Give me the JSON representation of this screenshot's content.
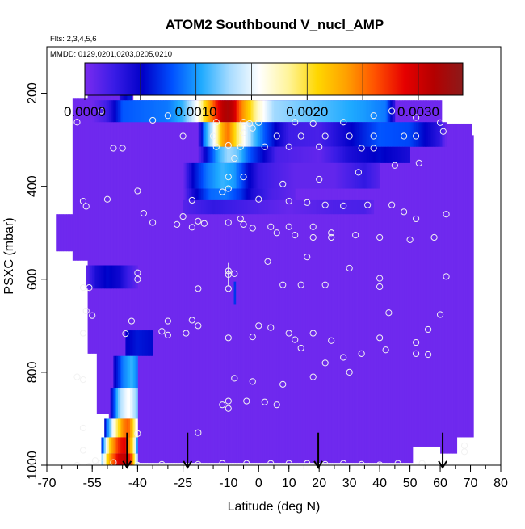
{
  "chart_data": {
    "type": "heatmap",
    "title": "ATOM2 Southbound V_nucl_AMP",
    "subtitle_flights": "Flts: 2,3,4,5,6",
    "subtitle_dates": "MMDD: 0129,0201,0203,0205,0210",
    "xlabel": "Latitude (deg N)",
    "ylabel": "PSXC (mbar)",
    "xlim": [
      -70,
      80
    ],
    "ylim": [
      1000,
      100
    ],
    "x_ticks": [
      -70,
      -55,
      -40,
      -25,
      -10,
      0,
      10,
      20,
      30,
      40,
      50,
      60,
      70,
      80
    ],
    "x_tick_labels": [
      "-70",
      "-55",
      "-40",
      "-25",
      "-10",
      "0",
      "10",
      "20",
      "30",
      "40",
      "50",
      "60",
      "70",
      "80"
    ],
    "y_ticks": [
      200,
      400,
      600,
      800,
      1000
    ],
    "y_tick_labels": [
      "200",
      "400",
      "600",
      "800",
      "1000"
    ],
    "colorbar": {
      "range": [
        0,
        0.0034
      ],
      "tick_values": [
        0,
        0.001,
        0.002,
        0.003
      ],
      "tick_labels": [
        "0.0000",
        "0.0010",
        "0.0020",
        "0.0030"
      ],
      "colors": [
        "#7b2cf0",
        "#3a1ce6",
        "#0000c8",
        "#0050ff",
        "#1eaaff",
        "#a8dcff",
        "#ffffff",
        "#fff49a",
        "#ffd700",
        "#ffa000",
        "#ff5000",
        "#e60000",
        "#b40000",
        "#8c1a1a"
      ]
    },
    "background_value": 5e-05,
    "envelope": [
      {
        "lat": -67,
        "p_top": 460,
        "p_bot": 540
      },
      {
        "lat": -62,
        "p_top": 210,
        "p_bot": 560
      },
      {
        "lat": -57,
        "p_top": 200,
        "p_bot": 760
      },
      {
        "lat": -54,
        "p_top": 165,
        "p_bot": 890
      },
      {
        "lat": -50,
        "p_top": 165,
        "p_bot": 985
      },
      {
        "lat": -46,
        "p_top": 165,
        "p_bot": 995
      },
      {
        "lat": -42,
        "p_top": 215,
        "p_bot": 995
      },
      {
        "lat": 45,
        "p_top": 215,
        "p_bot": 995
      },
      {
        "lat": 51,
        "p_top": 215,
        "p_bot": 975
      },
      {
        "lat": 60,
        "p_top": 265,
        "p_bot": 975
      },
      {
        "lat": 65,
        "p_top": 265,
        "p_bot": 940
      },
      {
        "lat": 70,
        "p_top": 290,
        "p_bot": 940
      }
    ],
    "envelope_gap": {
      "lat_min": 51,
      "lat_max": 60,
      "p_top": 960,
      "p_bot": 1000
    },
    "features": [
      {
        "name": "upper-band-1",
        "lat_min": -55,
        "lat_max": 45,
        "p_min": 215,
        "p_max": 262,
        "profile": [
          [
            -55,
            5e-05
          ],
          [
            -50,
            0.00025
          ],
          [
            -45,
            0.0008
          ],
          [
            -38,
            0.00085
          ],
          [
            -30,
            0.0009
          ],
          [
            -25,
            0.0011
          ],
          [
            -20,
            0.0016
          ],
          [
            -16,
            0.0024
          ],
          [
            -12,
            0.0031
          ],
          [
            -10,
            0.0032
          ],
          [
            -8,
            0.003
          ],
          [
            -6,
            0.0025
          ],
          [
            -3,
            0.0021
          ],
          [
            0,
            0.0017
          ],
          [
            5,
            0.0013
          ],
          [
            15,
            0.0012
          ],
          [
            25,
            0.0011
          ],
          [
            35,
            0.001
          ],
          [
            42,
            0.0009
          ],
          [
            45,
            0.0003
          ]
        ]
      },
      {
        "name": "upper-band-2",
        "lat_min": -20,
        "lat_max": 62,
        "p_min": 262,
        "p_max": 315,
        "profile": [
          [
            -20,
            5e-05
          ],
          [
            -18,
            0.0009
          ],
          [
            -14,
            0.0017
          ],
          [
            -12,
            0.0023
          ],
          [
            -10,
            0.0025
          ],
          [
            -8,
            0.0021
          ],
          [
            -5,
            0.0016
          ],
          [
            -2,
            0.0012
          ],
          [
            2,
            0.0008
          ],
          [
            6,
            0.0005
          ],
          [
            10,
            0.00025
          ],
          [
            20,
            0.0002
          ],
          [
            30,
            0.0005
          ],
          [
            40,
            0.0008
          ],
          [
            50,
            0.00075
          ],
          [
            60,
            0.0003
          ],
          [
            62,
            5e-05
          ]
        ]
      },
      {
        "name": "upper-band-3",
        "lat_min": -20,
        "lat_max": 50,
        "p_min": 315,
        "p_max": 350,
        "profile": [
          [
            -20,
            5e-05
          ],
          [
            -17,
            0.0006
          ],
          [
            -13,
            0.0011
          ],
          [
            -10,
            0.0013
          ],
          [
            -7,
            0.0012
          ],
          [
            -3,
            0.0008
          ],
          [
            2,
            0.0005
          ],
          [
            6,
            0.0002
          ],
          [
            20,
            0.0001
          ],
          [
            30,
            0.0004
          ],
          [
            40,
            0.00055
          ],
          [
            50,
            0.0004
          ]
        ]
      },
      {
        "name": "upper-band-4",
        "lat_min": -25,
        "lat_max": 40,
        "p_min": 350,
        "p_max": 405,
        "profile": [
          [
            -25,
            5e-05
          ],
          [
            -22,
            0.0005
          ],
          [
            -17,
            0.0009
          ],
          [
            -12,
            0.0011
          ],
          [
            -8,
            0.001
          ],
          [
            -4,
            0.0006
          ],
          [
            0,
            0.0003
          ],
          [
            5,
            0.0002
          ],
          [
            12,
            0.0001
          ],
          [
            25,
            0.0001
          ],
          [
            35,
            0.0003
          ],
          [
            40,
            0.00015
          ]
        ]
      },
      {
        "name": "upper-band-5",
        "lat_min": -25,
        "lat_max": 12,
        "p_min": 405,
        "p_max": 430,
        "profile": [
          [
            -25,
            5e-05
          ],
          [
            -22,
            0.0004
          ],
          [
            -16,
            0.00085
          ],
          [
            -11,
            0.0009
          ],
          [
            -6,
            0.0007
          ],
          [
            -2,
            0.0004
          ],
          [
            4,
            0.0002
          ],
          [
            12,
            0.0001
          ]
        ]
      },
      {
        "name": "upper-band-6",
        "lat_min": -25,
        "lat_max": 38,
        "p_min": 430,
        "p_max": 460,
        "profile": [
          [
            -25,
            0.00015
          ],
          [
            -15,
            0.0003
          ],
          [
            -5,
            0.00022
          ],
          [
            10,
            8e-05
          ],
          [
            25,
            0.00018
          ],
          [
            35,
            0.0002
          ],
          [
            38,
            0.0001
          ]
        ]
      },
      {
        "name": "low-band-590",
        "lat_min": -57,
        "lat_max": -40,
        "p_min": 570,
        "p_max": 620,
        "profile": [
          [
            -57,
            0.0001
          ],
          [
            -54,
            0.0004
          ],
          [
            -50,
            0.00055
          ],
          [
            -46,
            0.00045
          ],
          [
            -43,
            0.00025
          ],
          [
            -40,
            0.0001
          ]
        ]
      },
      {
        "name": "top-column-east",
        "lat_min": -46,
        "lat_max": -42,
        "p_min": 165,
        "p_max": 215,
        "profile": [
          [
            -46,
            0.00035
          ],
          [
            -43,
            0.0006
          ]
        ]
      },
      {
        "name": "column-l730",
        "lat_min": -44,
        "lat_max": -35,
        "p_min": 710,
        "p_max": 765,
        "profile": [
          [
            -44,
            0.0005
          ],
          [
            -40,
            0.0006
          ],
          [
            -35,
            0.00055
          ]
        ]
      },
      {
        "name": "column-l810",
        "lat_min": -48,
        "lat_max": -40,
        "p_min": 765,
        "p_max": 835,
        "profile": [
          [
            -48,
            0.0004
          ],
          [
            -45,
            0.0009
          ],
          [
            -42,
            0.0011
          ],
          [
            -40,
            0.0009
          ]
        ]
      },
      {
        "name": "column-l870",
        "lat_min": -49,
        "lat_max": -40,
        "p_min": 835,
        "p_max": 900,
        "profile": [
          [
            -49,
            0.0004
          ],
          [
            -46,
            0.0013
          ],
          [
            -43,
            0.0016
          ],
          [
            -40,
            0.0012
          ]
        ]
      },
      {
        "name": "column-l920",
        "lat_min": -51,
        "lat_max": -40,
        "p_min": 900,
        "p_max": 940,
        "profile": [
          [
            -51,
            0.0005
          ],
          [
            -48,
            0.0016
          ],
          [
            -45,
            0.0024
          ],
          [
            -43,
            0.0026
          ],
          [
            -40,
            0.0015
          ]
        ]
      },
      {
        "name": "column-l960",
        "lat_min": -52,
        "lat_max": -40,
        "p_min": 940,
        "p_max": 975,
        "profile": [
          [
            -52,
            0.0006
          ],
          [
            -49,
            0.0022
          ],
          [
            -46,
            0.0028
          ],
          [
            -44,
            0.0029
          ],
          [
            -41,
            0.0017
          ],
          [
            -40,
            0.0008
          ]
        ]
      },
      {
        "name": "column-l990",
        "lat_min": -52,
        "lat_max": -40,
        "p_min": 975,
        "p_max": 1000,
        "profile": [
          [
            -52,
            0.0012
          ],
          [
            -49,
            0.0024
          ],
          [
            -46,
            0.003
          ],
          [
            -44,
            0.0031
          ],
          [
            -42,
            0.0026
          ],
          [
            -40,
            0.0012
          ]
        ]
      },
      {
        "name": "sharp-line-a",
        "lat_min": -8.2,
        "lat_max": -7.6,
        "p_min": 605,
        "p_max": 655,
        "profile": [
          [
            -8,
            0.0007
          ]
        ]
      }
    ],
    "observations": [
      [
        -52,
        198
      ],
      [
        -46,
        198
      ],
      [
        -42,
        198
      ],
      [
        -25,
        198
      ],
      [
        -10,
        196
      ],
      [
        -60,
        262
      ],
      [
        -52,
        238
      ],
      [
        -35,
        258
      ],
      [
        -30,
        248
      ],
      [
        -14,
        262
      ],
      [
        -5,
        262
      ],
      [
        -3,
        265
      ],
      [
        0,
        263
      ],
      [
        12,
        262
      ],
      [
        18,
        265
      ],
      [
        28,
        262
      ],
      [
        38,
        248
      ],
      [
        44,
        238
      ],
      [
        52,
        252
      ],
      [
        60,
        263
      ],
      [
        -2,
        275
      ],
      [
        -25,
        292
      ],
      [
        -15,
        292
      ],
      [
        -5,
        285
      ],
      [
        6,
        292
      ],
      [
        14,
        292
      ],
      [
        22,
        292
      ],
      [
        30,
        292
      ],
      [
        38,
        292
      ],
      [
        48,
        292
      ],
      [
        52,
        292
      ],
      [
        61,
        282
      ],
      [
        -48,
        318
      ],
      [
        -45,
        318
      ],
      [
        -14,
        315
      ],
      [
        -10,
        312
      ],
      [
        -6,
        315
      ],
      [
        2,
        315
      ],
      [
        10,
        315
      ],
      [
        20,
        315
      ],
      [
        34,
        318
      ],
      [
        38,
        318
      ],
      [
        -8,
        340
      ],
      [
        -10,
        380
      ],
      [
        -5,
        380
      ],
      [
        8,
        395
      ],
      [
        20,
        385
      ],
      [
        33,
        370
      ],
      [
        45,
        355
      ],
      [
        53,
        350
      ],
      [
        -58,
        432
      ],
      [
        -50,
        428
      ],
      [
        -40,
        410
      ],
      [
        -10,
        405
      ],
      [
        -12,
        412
      ],
      [
        -22,
        430
      ],
      [
        0,
        428
      ],
      [
        10,
        432
      ],
      [
        16,
        435
      ],
      [
        22,
        440
      ],
      [
        28,
        442
      ],
      [
        36,
        440
      ],
      [
        44,
        440
      ],
      [
        48,
        455
      ],
      [
        52,
        470
      ],
      [
        62,
        460
      ],
      [
        -57,
        443
      ],
      [
        -38,
        458
      ],
      [
        -25,
        465
      ],
      [
        -20,
        475
      ],
      [
        -18,
        480
      ],
      [
        -10,
        478
      ],
      [
        -5,
        482
      ],
      [
        -2,
        490
      ],
      [
        6,
        500
      ],
      [
        12,
        505
      ],
      [
        18,
        510
      ],
      [
        24,
        510
      ],
      [
        32,
        505
      ],
      [
        40,
        510
      ],
      [
        50,
        515
      ],
      [
        58,
        510
      ],
      [
        -35,
        478
      ],
      [
        -27,
        482
      ],
      [
        -22,
        488
      ],
      [
        -6,
        470
      ],
      [
        4,
        487
      ],
      [
        10,
        487
      ],
      [
        18,
        487
      ],
      [
        24,
        500
      ],
      [
        -40,
        586
      ],
      [
        -10,
        582
      ],
      [
        -8,
        588
      ],
      [
        -10,
        590
      ],
      [
        3,
        562
      ],
      [
        16,
        552
      ],
      [
        30,
        576
      ],
      [
        40,
        598
      ],
      [
        62,
        594
      ],
      [
        -58,
        618
      ],
      [
        -56,
        618
      ],
      [
        -40,
        600
      ],
      [
        -20,
        620
      ],
      [
        -10,
        620
      ],
      [
        8,
        612
      ],
      [
        14,
        612
      ],
      [
        22,
        612
      ],
      [
        40,
        616
      ],
      [
        -57,
        668
      ],
      [
        -55,
        678
      ],
      [
        -42,
        690
      ],
      [
        -30,
        690
      ],
      [
        -22,
        688
      ],
      [
        -20,
        700
      ],
      [
        0,
        700
      ],
      [
        4,
        704
      ],
      [
        10,
        716
      ],
      [
        18,
        716
      ],
      [
        24,
        732
      ],
      [
        40,
        726
      ],
      [
        43,
        672
      ],
      [
        52,
        736
      ],
      [
        56,
        708
      ],
      [
        60,
        676
      ],
      [
        -58,
        716
      ],
      [
        -44,
        717
      ],
      [
        -30,
        720
      ],
      [
        -32,
        712
      ],
      [
        -24,
        716
      ],
      [
        -10,
        726
      ],
      [
        -2,
        724
      ],
      [
        12,
        730
      ],
      [
        14,
        748
      ],
      [
        22,
        780
      ],
      [
        28,
        768
      ],
      [
        34,
        760
      ],
      [
        42,
        752
      ],
      [
        52,
        760
      ],
      [
        56,
        762
      ],
      [
        -60,
        810
      ],
      [
        -58,
        816
      ],
      [
        -8,
        813
      ],
      [
        -2,
        820
      ],
      [
        8,
        826
      ],
      [
        18,
        810
      ],
      [
        30,
        800
      ],
      [
        -10,
        862
      ],
      [
        -12,
        870
      ],
      [
        -10,
        878
      ],
      [
        -4,
        862
      ],
      [
        2,
        864
      ],
      [
        6,
        870
      ],
      [
        -58,
        920
      ],
      [
        -40,
        932
      ],
      [
        -20,
        930
      ],
      [
        -58,
        968
      ],
      [
        -54,
        990
      ],
      [
        -52,
        995
      ],
      [
        -48,
        994
      ],
      [
        -40,
        1000
      ],
      [
        -32,
        998
      ],
      [
        -20,
        998
      ],
      [
        -12,
        996
      ],
      [
        -4,
        996
      ],
      [
        4,
        996
      ],
      [
        10,
        996
      ],
      [
        16,
        996
      ],
      [
        22,
        998
      ],
      [
        28,
        996
      ],
      [
        34,
        998
      ],
      [
        40,
        999
      ],
      [
        46,
        996
      ],
      [
        54,
        996
      ],
      [
        61,
        998
      ],
      [
        -60,
        1000
      ],
      [
        -56,
        1002
      ],
      [
        68,
        958
      ],
      [
        68,
        971
      ]
    ],
    "arrows_lat": [
      -43.5,
      -23.5,
      19.7,
      60.8
    ],
    "marker_lat": -10
  }
}
